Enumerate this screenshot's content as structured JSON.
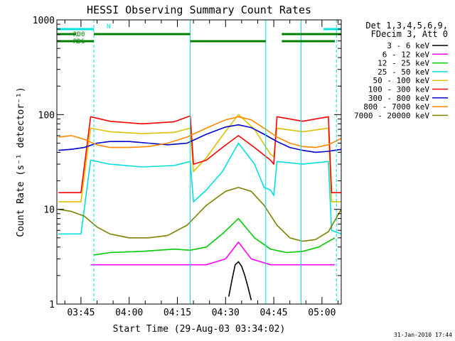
{
  "chart_data": {
    "type": "line",
    "title": "HESSI Observing Summary Count Rates",
    "xlabel": "Start Time (29-Aug-03 03:34:02)",
    "ylabel": "Count Rate (s⁻¹ detector⁻¹)",
    "y_scale": "log",
    "ylim": [
      1,
      1000
    ],
    "xlim_minutes": [
      3.5,
      92.0
    ],
    "x_unit": "minutes after 03:34:02",
    "x_ticks": [
      {
        "t": 11.0,
        "label": "03:45"
      },
      {
        "t": 26.0,
        "label": "04:00"
      },
      {
        "t": 41.0,
        "label": "04:15"
      },
      {
        "t": 56.0,
        "label": "04:30"
      },
      {
        "t": 71.0,
        "label": "04:45"
      },
      {
        "t": 86.0,
        "label": "05:00"
      }
    ],
    "y_ticks": [
      {
        "v": 1,
        "label": "1"
      },
      {
        "v": 10,
        "label": "10"
      },
      {
        "v": 100,
        "label": "100"
      },
      {
        "v": 1000,
        "label": "1000"
      }
    ],
    "legend": {
      "placement": "right",
      "header": [
        "Det 1,3,4,5,6,9,",
        "FDecim 3, Att 0"
      ]
    },
    "series": [
      {
        "name": "3 - 6 keV",
        "color": "#000000",
        "x": [
          57,
          58,
          59,
          60,
          61,
          62,
          63,
          64
        ],
        "y": [
          1.2,
          1.8,
          2.6,
          2.8,
          2.5,
          2.0,
          1.5,
          1.1
        ]
      },
      {
        "name": "6 - 12 keV",
        "color": "#ff00ff",
        "x": [
          14,
          20,
          30,
          40,
          50,
          56,
          60,
          64,
          70,
          80,
          90
        ],
        "y": [
          2.6,
          2.6,
          2.6,
          2.6,
          2.6,
          3.0,
          4.5,
          3.0,
          2.6,
          2.6,
          2.6
        ]
      },
      {
        "name": "12 - 25 keV",
        "color": "#00cc00",
        "x": [
          15,
          20,
          30,
          40,
          45,
          50,
          55,
          60,
          65,
          70,
          75,
          80,
          85,
          90
        ],
        "y": [
          3.3,
          3.5,
          3.6,
          3.8,
          3.7,
          4.0,
          5.5,
          8.0,
          5.0,
          3.8,
          3.5,
          3.6,
          4.0,
          5.0
        ]
      },
      {
        "name": "25 - 50 keV",
        "color": "#00e0e0",
        "x": [
          4,
          10,
          11,
          14,
          20,
          30,
          40,
          45,
          46,
          50,
          55,
          60,
          65,
          68,
          70,
          71,
          72,
          80,
          88,
          89,
          92
        ],
        "y": [
          5.5,
          5.5,
          5.5,
          33,
          30,
          28,
          29,
          32,
          12,
          16,
          25,
          50,
          30,
          17,
          16,
          14,
          32,
          30,
          32,
          6,
          5.5
        ]
      },
      {
        "name": "50 - 100 keV",
        "color": "#e0c000",
        "x": [
          4,
          10,
          11,
          14,
          20,
          30,
          40,
          45,
          46,
          50,
          55,
          60,
          65,
          70,
          71,
          72,
          80,
          88,
          89,
          92
        ],
        "y": [
          12,
          12,
          12,
          72,
          66,
          63,
          65,
          72,
          25,
          35,
          60,
          100,
          70,
          38,
          36,
          72,
          66,
          72,
          12,
          12
        ]
      },
      {
        "name": "100 - 300 keV",
        "color": "#ff0000",
        "x": [
          4,
          10,
          11,
          14,
          20,
          30,
          40,
          45,
          46,
          50,
          55,
          60,
          65,
          70,
          71,
          72,
          80,
          88,
          89,
          92
        ],
        "y": [
          15,
          15,
          15,
          95,
          85,
          80,
          84,
          97,
          30,
          33,
          45,
          60,
          45,
          33,
          30,
          95,
          85,
          95,
          15,
          15
        ]
      },
      {
        "name": "300 - 800 keV",
        "color": "#0000cc",
        "x": [
          4,
          8,
          12,
          16,
          20,
          26,
          32,
          38,
          44,
          50,
          56,
          60,
          64,
          68,
          72,
          76,
          80,
          84,
          88,
          92
        ],
        "y": [
          42,
          43,
          45,
          50,
          52,
          52,
          50,
          48,
          50,
          62,
          74,
          78,
          73,
          62,
          52,
          45,
          42,
          40,
          41,
          43
        ]
      },
      {
        "name": "800 - 7000 keV",
        "color": "#ff8800",
        "x": [
          4,
          8,
          12,
          16,
          20,
          26,
          32,
          38,
          44,
          50,
          56,
          60,
          64,
          68,
          72,
          76,
          80,
          84,
          88,
          92
        ],
        "y": [
          58,
          60,
          55,
          48,
          45,
          45,
          46,
          50,
          58,
          72,
          88,
          95,
          88,
          72,
          58,
          50,
          46,
          45,
          48,
          56
        ]
      },
      {
        "name": "7000 - 20000 keV",
        "color": "#808000",
        "x": [
          4,
          8,
          12,
          16,
          20,
          26,
          32,
          38,
          44,
          50,
          56,
          60,
          64,
          68,
          72,
          76,
          80,
          84,
          88,
          92
        ],
        "y": [
          10,
          9.5,
          8.5,
          6.5,
          5.5,
          5.0,
          5.0,
          5.3,
          6.8,
          11,
          15.5,
          17,
          15.5,
          11,
          6.8,
          5.0,
          4.6,
          4.8,
          5.8,
          10
        ]
      }
    ],
    "annotations": [
      {
        "label": "N",
        "color": "#00e0e0",
        "row": "top",
        "bars": [
          [
            3.5,
            15.0
          ],
          [
            86.5,
            92.0
          ]
        ]
      },
      {
        "label": "RD0",
        "color": "#008000",
        "row": "middle",
        "bars": [
          [
            3.5,
            9.5
          ],
          [
            15.0,
            45.0
          ],
          [
            73.5,
            92.0
          ]
        ]
      },
      {
        "label": "RD6",
        "color": "#008000",
        "row": "bottom",
        "bars": [
          [
            3.5,
            15.0
          ],
          [
            45.0,
            68.5
          ],
          [
            73.5,
            90.0
          ]
        ]
      }
    ],
    "vlines": [
      {
        "t": 15.0,
        "color": "#00e0e0",
        "style": "dashed"
      },
      {
        "t": 45.0,
        "color": "#00e0e0",
        "style": "solid"
      },
      {
        "t": 68.5,
        "color": "#00e0e0",
        "style": "solid"
      },
      {
        "t": 79.5,
        "color": "#00e0e0",
        "style": "solid"
      },
      {
        "t": 90.5,
        "color": "#00e0e0",
        "style": "dashed"
      }
    ],
    "footer_date": "31-Jan-2010 17:44"
  }
}
